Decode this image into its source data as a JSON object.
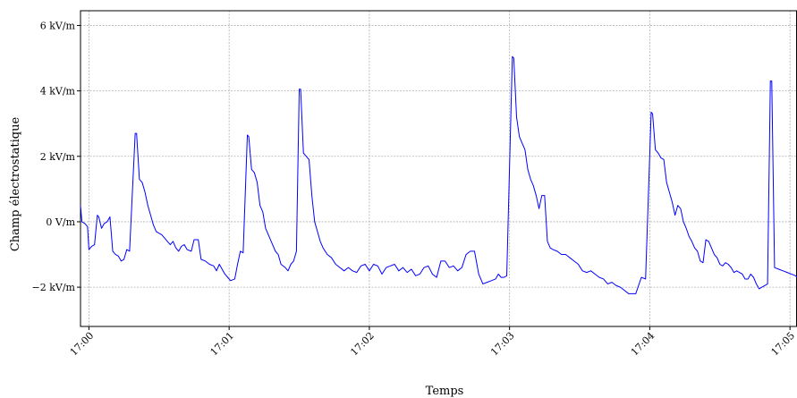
{
  "chart_data": {
    "type": "line",
    "title": "",
    "xlabel": "Temps",
    "ylabel": "Champ électrostatique",
    "x_unit": "minutes after 17:00",
    "xlim": [
      -0.06,
      5.05
    ],
    "ylim": [
      -3.2,
      6.45
    ],
    "x_ticks": [
      {
        "value": 0,
        "label": "17:00"
      },
      {
        "value": 1,
        "label": "17:01"
      },
      {
        "value": 2,
        "label": "17:02"
      },
      {
        "value": 3,
        "label": "17:03"
      },
      {
        "value": 4,
        "label": "17:04"
      },
      {
        "value": 5,
        "label": "17:05"
      }
    ],
    "y_ticks": [
      {
        "value": -2,
        "label": "−2 kV/m"
      },
      {
        "value": 0,
        "label": "0 V/m"
      },
      {
        "value": 2,
        "label": "2 kV/m"
      },
      {
        "value": 4,
        "label": "4 kV/m"
      },
      {
        "value": 6,
        "label": "6 kV/m"
      }
    ],
    "grid": true,
    "line_color": "#0000ff",
    "series": [
      {
        "values": [
          [
            -0.06,
            0.5
          ],
          [
            -0.05,
            0.0
          ],
          [
            -0.03,
            -0.05
          ],
          [
            -0.02,
            -0.1
          ],
          [
            -0.01,
            -0.15
          ],
          [
            0.0,
            -0.85
          ],
          [
            0.02,
            -0.75
          ],
          [
            0.04,
            -0.7
          ],
          [
            0.06,
            0.2
          ],
          [
            0.07,
            0.15
          ],
          [
            0.09,
            -0.2
          ],
          [
            0.11,
            -0.05
          ],
          [
            0.13,
            0.0
          ],
          [
            0.15,
            0.15
          ],
          [
            0.17,
            -0.9
          ],
          [
            0.19,
            -1.0
          ],
          [
            0.21,
            -1.05
          ],
          [
            0.23,
            -1.2
          ],
          [
            0.25,
            -1.15
          ],
          [
            0.27,
            -0.85
          ],
          [
            0.29,
            -0.9
          ],
          [
            0.33,
            2.7
          ],
          [
            0.34,
            2.7
          ],
          [
            0.36,
            1.3
          ],
          [
            0.38,
            1.2
          ],
          [
            0.4,
            0.9
          ],
          [
            0.42,
            0.5
          ],
          [
            0.44,
            0.2
          ],
          [
            0.46,
            -0.1
          ],
          [
            0.48,
            -0.3
          ],
          [
            0.52,
            -0.4
          ],
          [
            0.56,
            -0.6
          ],
          [
            0.58,
            -0.7
          ],
          [
            0.6,
            -0.6
          ],
          [
            0.62,
            -0.8
          ],
          [
            0.64,
            -0.9
          ],
          [
            0.66,
            -0.75
          ],
          [
            0.68,
            -0.7
          ],
          [
            0.7,
            -0.85
          ],
          [
            0.73,
            -0.9
          ],
          [
            0.75,
            -0.55
          ],
          [
            0.78,
            -0.55
          ],
          [
            0.8,
            -1.15
          ],
          [
            0.83,
            -1.2
          ],
          [
            0.86,
            -1.3
          ],
          [
            0.89,
            -1.35
          ],
          [
            0.91,
            -1.5
          ],
          [
            0.93,
            -1.3
          ],
          [
            0.95,
            -1.45
          ],
          [
            0.97,
            -1.6
          ],
          [
            0.99,
            -1.7
          ],
          [
            1.01,
            -1.8
          ],
          [
            1.04,
            -1.75
          ],
          [
            1.06,
            -1.3
          ],
          [
            1.08,
            -0.9
          ],
          [
            1.1,
            -0.95
          ],
          [
            1.13,
            2.65
          ],
          [
            1.14,
            2.6
          ],
          [
            1.16,
            1.6
          ],
          [
            1.18,
            1.5
          ],
          [
            1.2,
            1.2
          ],
          [
            1.22,
            0.5
          ],
          [
            1.24,
            0.3
          ],
          [
            1.26,
            -0.2
          ],
          [
            1.28,
            -0.4
          ],
          [
            1.3,
            -0.6
          ],
          [
            1.33,
            -0.9
          ],
          [
            1.35,
            -1.0
          ],
          [
            1.37,
            -1.3
          ],
          [
            1.4,
            -1.4
          ],
          [
            1.42,
            -1.5
          ],
          [
            1.44,
            -1.3
          ],
          [
            1.46,
            -1.2
          ],
          [
            1.48,
            -0.9
          ],
          [
            1.5,
            4.05
          ],
          [
            1.51,
            4.05
          ],
          [
            1.53,
            2.1
          ],
          [
            1.55,
            2.0
          ],
          [
            1.57,
            1.9
          ],
          [
            1.59,
            0.8
          ],
          [
            1.61,
            0.0
          ],
          [
            1.63,
            -0.3
          ],
          [
            1.65,
            -0.6
          ],
          [
            1.67,
            -0.8
          ],
          [
            1.7,
            -1.0
          ],
          [
            1.73,
            -1.1
          ],
          [
            1.76,
            -1.3
          ],
          [
            1.79,
            -1.4
          ],
          [
            1.82,
            -1.5
          ],
          [
            1.85,
            -1.4
          ],
          [
            1.88,
            -1.5
          ],
          [
            1.91,
            -1.55
          ],
          [
            1.94,
            -1.35
          ],
          [
            1.97,
            -1.3
          ],
          [
            2.0,
            -1.5
          ],
          [
            2.03,
            -1.3
          ],
          [
            2.06,
            -1.35
          ],
          [
            2.09,
            -1.6
          ],
          [
            2.12,
            -1.4
          ],
          [
            2.15,
            -1.35
          ],
          [
            2.18,
            -1.3
          ],
          [
            2.21,
            -1.5
          ],
          [
            2.24,
            -1.4
          ],
          [
            2.27,
            -1.55
          ],
          [
            2.3,
            -1.45
          ],
          [
            2.33,
            -1.65
          ],
          [
            2.36,
            -1.6
          ],
          [
            2.39,
            -1.4
          ],
          [
            2.42,
            -1.35
          ],
          [
            2.45,
            -1.6
          ],
          [
            2.48,
            -1.7
          ],
          [
            2.51,
            -1.2
          ],
          [
            2.54,
            -1.2
          ],
          [
            2.57,
            -1.4
          ],
          [
            2.6,
            -1.35
          ],
          [
            2.63,
            -1.5
          ],
          [
            2.66,
            -1.4
          ],
          [
            2.69,
            -1.0
          ],
          [
            2.72,
            -0.9
          ],
          [
            2.75,
            -0.9
          ],
          [
            2.78,
            -1.6
          ],
          [
            2.81,
            -1.9
          ],
          [
            2.84,
            -1.85
          ],
          [
            2.87,
            -1.8
          ],
          [
            2.9,
            -1.75
          ],
          [
            2.92,
            -1.6
          ],
          [
            2.94,
            -1.7
          ],
          [
            2.96,
            -1.7
          ],
          [
            2.98,
            -1.65
          ],
          [
            3.02,
            5.05
          ],
          [
            3.03,
            5.0
          ],
          [
            3.05,
            3.2
          ],
          [
            3.07,
            2.6
          ],
          [
            3.09,
            2.4
          ],
          [
            3.11,
            2.2
          ],
          [
            3.13,
            1.6
          ],
          [
            3.15,
            1.3
          ],
          [
            3.17,
            1.1
          ],
          [
            3.19,
            0.8
          ],
          [
            3.21,
            0.4
          ],
          [
            3.23,
            0.8
          ],
          [
            3.25,
            0.8
          ],
          [
            3.27,
            -0.6
          ],
          [
            3.29,
            -0.8
          ],
          [
            3.31,
            -0.85
          ],
          [
            3.34,
            -0.9
          ],
          [
            3.37,
            -1.0
          ],
          [
            3.4,
            -1.0
          ],
          [
            3.43,
            -1.1
          ],
          [
            3.46,
            -1.2
          ],
          [
            3.49,
            -1.3
          ],
          [
            3.52,
            -1.5
          ],
          [
            3.55,
            -1.55
          ],
          [
            3.58,
            -1.5
          ],
          [
            3.61,
            -1.6
          ],
          [
            3.64,
            -1.7
          ],
          [
            3.67,
            -1.75
          ],
          [
            3.7,
            -1.9
          ],
          [
            3.73,
            -1.85
          ],
          [
            3.76,
            -1.95
          ],
          [
            3.79,
            -2.0
          ],
          [
            3.82,
            -2.1
          ],
          [
            3.85,
            -2.2
          ],
          [
            3.88,
            -2.2
          ],
          [
            3.9,
            -2.2
          ],
          [
            3.92,
            -1.95
          ],
          [
            3.94,
            -1.7
          ],
          [
            3.97,
            -1.75
          ],
          [
            4.01,
            3.35
          ],
          [
            4.02,
            3.3
          ],
          [
            4.04,
            2.2
          ],
          [
            4.06,
            2.1
          ],
          [
            4.08,
            1.95
          ],
          [
            4.1,
            1.9
          ],
          [
            4.12,
            1.2
          ],
          [
            4.14,
            0.9
          ],
          [
            4.16,
            0.6
          ],
          [
            4.18,
            0.2
          ],
          [
            4.2,
            0.5
          ],
          [
            4.22,
            0.4
          ],
          [
            4.24,
            0.0
          ],
          [
            4.26,
            -0.2
          ],
          [
            4.28,
            -0.45
          ],
          [
            4.3,
            -0.6
          ],
          [
            4.32,
            -0.8
          ],
          [
            4.34,
            -0.9
          ],
          [
            4.36,
            -1.2
          ],
          [
            4.38,
            -1.25
          ],
          [
            4.4,
            -0.55
          ],
          [
            4.42,
            -0.6
          ],
          [
            4.44,
            -0.8
          ],
          [
            4.46,
            -1.0
          ],
          [
            4.48,
            -1.1
          ],
          [
            4.5,
            -1.3
          ],
          [
            4.52,
            -1.35
          ],
          [
            4.54,
            -1.25
          ],
          [
            4.56,
            -1.3
          ],
          [
            4.58,
            -1.4
          ],
          [
            4.6,
            -1.55
          ],
          [
            4.62,
            -1.5
          ],
          [
            4.64,
            -1.55
          ],
          [
            4.66,
            -1.6
          ],
          [
            4.68,
            -1.75
          ],
          [
            4.7,
            -1.75
          ],
          [
            4.72,
            -1.6
          ],
          [
            4.74,
            -1.7
          ],
          [
            4.76,
            -1.9
          ],
          [
            4.78,
            -2.05
          ],
          [
            4.8,
            -2.0
          ],
          [
            4.82,
            -1.95
          ],
          [
            4.84,
            -1.9
          ],
          [
            4.86,
            4.3
          ],
          [
            4.87,
            4.3
          ],
          [
            4.89,
            -1.4
          ],
          [
            4.92,
            -1.45
          ],
          [
            4.95,
            -1.5
          ],
          [
            4.98,
            -1.55
          ],
          [
            5.01,
            -1.6
          ],
          [
            5.04,
            -1.65
          ],
          [
            5.05,
            -1.7
          ]
        ]
      }
    ]
  }
}
